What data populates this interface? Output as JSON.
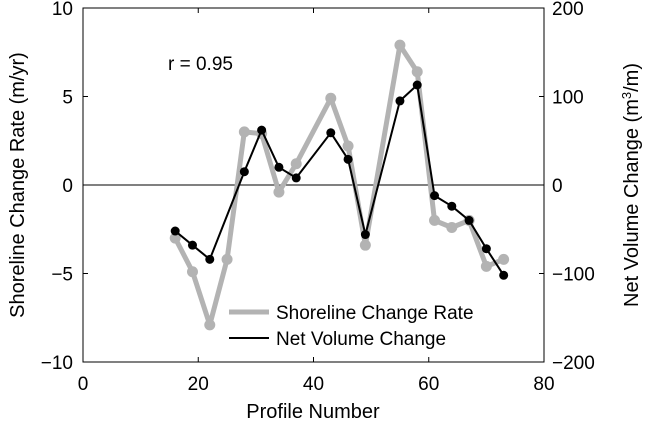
{
  "chart_data": {
    "type": "line",
    "x_axis": {
      "label": "Profile Number",
      "range": [
        0,
        80
      ],
      "ticks": [
        0,
        20,
        40,
        60,
        80
      ],
      "tick_labels": [
        "0",
        "20",
        "40",
        "60",
        "80"
      ]
    },
    "y_left": {
      "label": "Shoreline Change Rate (m/yr)",
      "range": [
        -10,
        10
      ],
      "ticks": [
        -10,
        -5,
        0,
        5,
        10
      ],
      "tick_labels": [
        "−10",
        "−5",
        "0",
        "5",
        "10"
      ]
    },
    "y_right": {
      "label_prefix": "Net Volume Change (m",
      "label_sup": "3",
      "label_suffix": "/m)",
      "range": [
        -200,
        200
      ],
      "ticks": [
        -200,
        -100,
        0,
        100,
        200
      ],
      "tick_labels": [
        "−200",
        "−100",
        "0",
        "100",
        "200"
      ]
    },
    "annotation": "r = 0.95",
    "zero_line": true,
    "grid": false,
    "legend_position": "bottom-right",
    "series": [
      {
        "name": "Shoreline Change Rate",
        "axis": "left",
        "color": "#b3b3b3",
        "x": [
          16,
          19,
          22,
          25,
          28,
          31,
          34,
          37,
          43,
          46,
          49,
          55,
          58,
          61,
          64,
          67,
          70,
          73
        ],
        "y": [
          -3.0,
          -4.9,
          -7.9,
          -4.2,
          3.0,
          2.9,
          -0.4,
          1.2,
          4.9,
          2.2,
          -3.4,
          7.9,
          6.4,
          -2.0,
          -2.4,
          -2.0,
          -4.6,
          -4.2
        ]
      },
      {
        "name": "Net Volume Change",
        "axis": "right",
        "color": "#000000",
        "x": [
          16,
          19,
          22,
          28,
          31,
          34,
          37,
          43,
          46,
          49,
          55,
          58,
          61,
          64,
          67,
          70,
          73
        ],
        "y": [
          -52,
          -68,
          -84,
          15,
          62,
          20,
          8,
          59,
          29,
          -56,
          95,
          113,
          -12,
          -24,
          -40,
          -72,
          -102
        ]
      }
    ]
  }
}
